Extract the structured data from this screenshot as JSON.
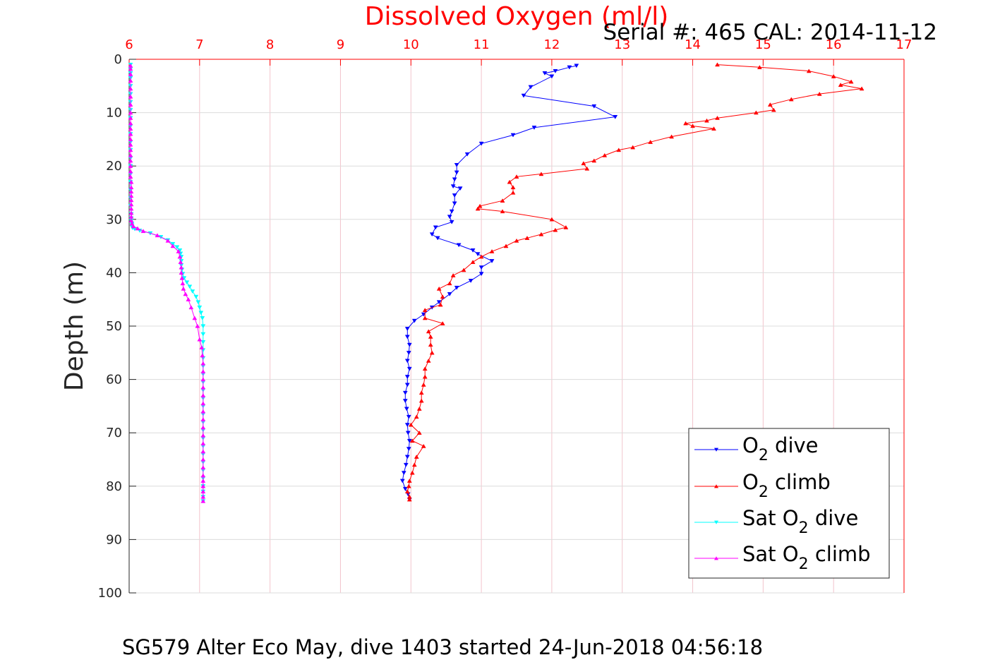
{
  "chart_data": {
    "type": "line",
    "title": "Dissolved Oxygen (ml/l)",
    "subtitle": "Serial #: 465  CAL: 2014-11-12",
    "footer": "SG579 Alter Eco May, dive 1403 started 24-Jun-2018 04:56:18",
    "xlabel": "Dissolved Oxygen (ml/l)",
    "ylabel": "Depth (m)",
    "xlim": [
      6,
      17
    ],
    "ylim": [
      0,
      100
    ],
    "y_reversed": true,
    "xticks": [
      "6",
      "7",
      "8",
      "9",
      "10",
      "11",
      "12",
      "13",
      "14",
      "15",
      "16",
      "17"
    ],
    "yticks": [
      "0",
      "10",
      "20",
      "30",
      "40",
      "50",
      "60",
      "70",
      "80",
      "90",
      "100"
    ],
    "grid": true,
    "legend_position": "bottom-right",
    "series": [
      {
        "name": "O2 dive",
        "legend_main": "O",
        "legend_sub": "2",
        "legend_post": " dive",
        "color": "#0000ff",
        "marker": "triangle-down",
        "x": [
          12.35,
          12.25,
          12.05,
          11.9,
          12.0,
          11.7,
          11.6,
          12.6,
          12.9,
          11.75,
          11.45,
          11.0,
          10.8,
          10.65,
          10.65,
          10.62,
          10.6,
          10.7,
          10.62,
          10.62,
          10.58,
          10.55,
          10.58,
          10.35,
          10.3,
          10.38,
          10.68,
          10.88,
          10.95,
          11.15,
          11.0,
          11.0,
          10.85,
          10.65,
          10.55,
          10.4,
          10.3,
          10.18,
          10.05,
          9.95,
          9.95,
          9.98,
          9.97,
          9.95,
          9.98,
          9.95,
          9.95,
          9.92,
          9.92,
          9.94,
          9.97,
          9.95,
          9.96,
          9.98,
          9.97,
          9.95,
          9.93,
          9.9,
          9.88,
          9.92,
          9.96,
          9.98
        ],
        "y": [
          1.2,
          1.5,
          2.2,
          2.6,
          3.2,
          5.2,
          6.8,
          8.8,
          10.8,
          12.8,
          14.2,
          15.8,
          17.8,
          19.8,
          21.2,
          22.5,
          23.8,
          24.2,
          25.5,
          27.0,
          28.5,
          29.5,
          30.5,
          31.5,
          32.8,
          33.5,
          34.8,
          35.8,
          36.5,
          37.8,
          39.0,
          40.2,
          41.5,
          42.8,
          44.0,
          45.5,
          46.5,
          47.8,
          49.0,
          50.5,
          52.0,
          53.5,
          55.0,
          56.5,
          58.0,
          59.5,
          61.0,
          62.5,
          64.0,
          65.5,
          67.0,
          68.5,
          70.0,
          71.5,
          73.0,
          74.5,
          76.0,
          77.5,
          79.0,
          80.5,
          81.5,
          82.5
        ]
      },
      {
        "name": "O2 climb",
        "legend_main": "O",
        "legend_sub": "2",
        "legend_post": " climb",
        "color": "#ff0000",
        "marker": "triangle-up",
        "x": [
          9.98,
          9.98,
          9.95,
          9.97,
          9.98,
          10.02,
          10.05,
          10.08,
          10.18,
          10.02,
          10.12,
          10.0,
          10.08,
          10.12,
          10.15,
          10.15,
          10.18,
          10.2,
          10.2,
          10.25,
          10.3,
          10.28,
          10.28,
          10.25,
          10.45,
          10.2,
          10.2,
          10.42,
          10.45,
          10.4,
          10.55,
          10.6,
          10.75,
          10.88,
          11.0,
          11.15,
          11.35,
          11.5,
          11.65,
          11.85,
          12.05,
          12.2,
          12.0,
          11.3,
          10.95,
          10.98,
          11.3,
          11.45,
          11.45,
          11.4,
          11.5,
          11.85,
          12.5,
          12.45,
          12.6,
          12.75,
          12.95,
          13.15,
          13.4,
          13.7,
          14.3,
          14.0,
          13.9,
          14.2,
          14.35,
          14.9,
          15.15,
          15.1,
          15.4,
          15.8,
          16.4,
          16.1,
          16.25,
          16.0,
          15.65,
          14.95,
          14.35
        ],
        "y": [
          82.5,
          82.0,
          81.0,
          80.0,
          79.0,
          77.5,
          76.0,
          74.5,
          72.5,
          71.5,
          70.0,
          68.5,
          67.0,
          65.5,
          64.0,
          62.5,
          61.0,
          59.5,
          58.0,
          56.5,
          55.0,
          53.5,
          52.0,
          51.0,
          49.5,
          48.5,
          47.0,
          46.0,
          44.5,
          43.0,
          42.0,
          40.5,
          39.5,
          38.0,
          37.0,
          36.0,
          35.0,
          34.0,
          33.5,
          32.8,
          32.0,
          31.5,
          30.0,
          28.5,
          28.0,
          27.5,
          26.5,
          25.0,
          24.0,
          23.0,
          22.0,
          21.5,
          20.5,
          19.5,
          19.0,
          18.0,
          17.0,
          16.5,
          15.5,
          14.5,
          13.0,
          12.5,
          12.0,
          11.5,
          11.0,
          10.0,
          9.5,
          8.5,
          7.5,
          6.5,
          5.5,
          4.8,
          4.2,
          3.2,
          2.2,
          1.5,
          1.0
        ]
      },
      {
        "name": "Sat O2 dive",
        "legend_main": "Sat O",
        "legend_sub": "2",
        "legend_post": " dive",
        "color": "#00ffff",
        "marker": "triangle-down",
        "x": [
          6.02,
          6.02,
          6.02,
          6.02,
          6.02,
          6.02,
          6.02,
          6.02,
          6.02,
          6.02,
          6.02,
          6.02,
          6.02,
          6.02,
          6.02,
          6.02,
          6.02,
          6.02,
          6.02,
          6.02,
          6.03,
          6.03,
          6.03,
          6.04,
          6.04,
          6.04,
          6.05,
          6.08,
          6.15,
          6.3,
          6.45,
          6.55,
          6.62,
          6.68,
          6.72,
          6.73,
          6.74,
          6.74,
          6.74,
          6.75,
          6.76,
          6.78,
          6.82,
          6.86,
          6.9,
          6.95,
          6.98,
          7.0,
          7.02,
          7.04,
          7.05,
          7.05,
          7.05,
          7.05,
          7.05,
          7.05,
          7.05,
          7.05,
          7.05,
          7.05,
          7.05,
          7.05,
          7.05,
          7.05,
          7.05,
          7.05,
          7.05,
          7.05,
          7.05,
          7.05,
          7.05,
          7.05,
          7.05,
          7.05
        ],
        "y": [
          1.0,
          1.8,
          2.6,
          3.5,
          5.0,
          6.5,
          8.0,
          9.5,
          11.0,
          12.5,
          14.0,
          15.5,
          17.0,
          18.5,
          20.0,
          21.5,
          23.0,
          24.5,
          26.0,
          27.5,
          29.0,
          29.8,
          30.3,
          30.8,
          31.1,
          31.4,
          31.6,
          31.8,
          32.1,
          32.6,
          33.3,
          33.9,
          34.6,
          35.2,
          35.8,
          36.4,
          37.0,
          37.8,
          38.6,
          39.4,
          40.2,
          41.0,
          41.8,
          42.6,
          43.5,
          44.5,
          45.5,
          46.5,
          47.5,
          48.5,
          50.0,
          51.5,
          53.0,
          54.5,
          56.0,
          57.5,
          59.0,
          60.5,
          62.0,
          63.5,
          65.0,
          66.5,
          68.0,
          69.5,
          71.0,
          72.5,
          74.0,
          75.5,
          77.0,
          78.5,
          80.0,
          81.0,
          82.0,
          82.8
        ]
      },
      {
        "name": "Sat O2 climb",
        "legend_main": "Sat O",
        "legend_sub": "2",
        "legend_post": " climb",
        "color": "#ff00ff",
        "marker": "triangle-up",
        "x": [
          7.05,
          7.05,
          7.05,
          7.05,
          7.05,
          7.05,
          7.05,
          7.05,
          7.05,
          7.05,
          7.05,
          7.05,
          7.05,
          7.05,
          7.05,
          7.05,
          7.05,
          7.05,
          7.05,
          7.05,
          7.04,
          7.03,
          7.0,
          6.97,
          6.93,
          6.88,
          6.84,
          6.8,
          6.77,
          6.76,
          6.75,
          6.74,
          6.74,
          6.73,
          6.72,
          6.7,
          6.62,
          6.55,
          6.4,
          6.2,
          6.12,
          6.06,
          6.04,
          6.03,
          6.03,
          6.03,
          6.03,
          6.03,
          6.03,
          6.03,
          6.03,
          6.03,
          6.03,
          6.02,
          6.02,
          6.02,
          6.02,
          6.02,
          6.02,
          6.02,
          6.02,
          6.02,
          6.02,
          6.02,
          6.02,
          6.02,
          6.02,
          6.02,
          6.02,
          6.02,
          6.02,
          6.02,
          6.02
        ],
        "y": [
          82.8,
          82.0,
          81.0,
          80.0,
          79.0,
          78.0,
          76.5,
          75.0,
          73.5,
          72.0,
          70.5,
          69.0,
          67.5,
          66.0,
          64.5,
          63.0,
          61.5,
          60.0,
          58.5,
          57.0,
          55.5,
          54.0,
          52.5,
          50.0,
          48.5,
          46.5,
          45.0,
          44.0,
          43.0,
          42.0,
          41.0,
          40.0,
          39.0,
          38.0,
          37.0,
          36.0,
          35.0,
          34.0,
          33.0,
          32.2,
          31.7,
          31.3,
          30.8,
          30.2,
          29.5,
          28.8,
          28.0,
          27.2,
          26.4,
          25.6,
          24.8,
          24.0,
          23.0,
          22.0,
          21.0,
          20.0,
          19.0,
          18.0,
          17.0,
          16.0,
          15.0,
          14.0,
          13.0,
          12.0,
          11.0,
          10.0,
          8.5,
          7.0,
          5.5,
          4.0,
          2.8,
          1.8,
          1.2
        ]
      }
    ]
  }
}
